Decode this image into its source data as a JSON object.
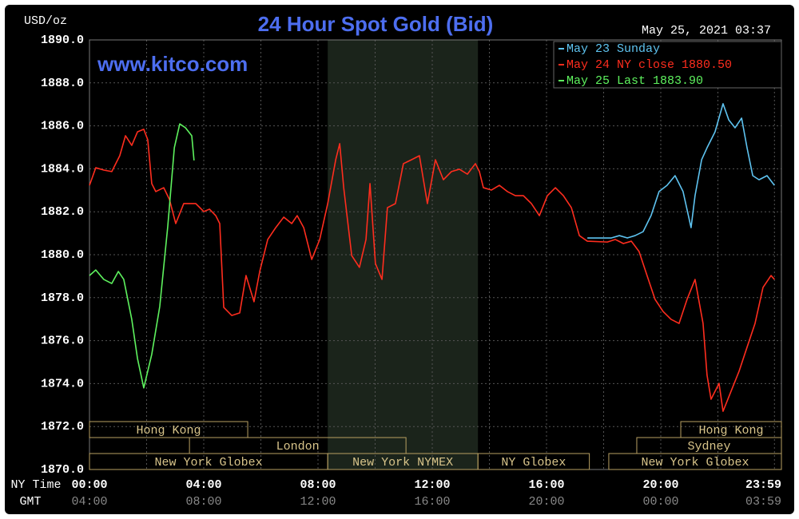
{
  "chart_data": {
    "type": "line",
    "title": "24 Hour Spot Gold (Bid)",
    "watermark": "www.kitco.com",
    "y_unit": "USD/oz",
    "timestamp": "May 25, 2021 03:37",
    "x_row_labels": [
      "NY Time",
      "GMT"
    ],
    "xlim": [
      0,
      24
    ],
    "ylim": [
      1870,
      1890
    ],
    "xticks": [
      {
        "value": 0,
        "label": "00:00"
      },
      {
        "value": 4,
        "label": "04:00"
      },
      {
        "value": 8,
        "label": "08:00"
      },
      {
        "value": 12,
        "label": "12:00"
      },
      {
        "value": 16,
        "label": "16:00"
      },
      {
        "value": 20,
        "label": "20:00"
      },
      {
        "value": 23.98,
        "label": "23:59"
      }
    ],
    "gmt_tick_labels": [
      "04:00",
      "08:00",
      "12:00",
      "16:00",
      "20:00",
      "00:00",
      "03:59"
    ],
    "xminor": [
      2,
      6,
      10,
      14,
      18,
      22
    ],
    "yticks": [
      {
        "value": 1870,
        "label": "1870.0"
      },
      {
        "value": 1872,
        "label": "1872.0"
      },
      {
        "value": 1874,
        "label": "1874.0"
      },
      {
        "value": 1876,
        "label": "1876.0"
      },
      {
        "value": 1878,
        "label": "1878.0"
      },
      {
        "value": 1880,
        "label": "1880.0"
      },
      {
        "value": 1882,
        "label": "1882.0"
      },
      {
        "value": 1884,
        "label": "1884.0"
      },
      {
        "value": 1886,
        "label": "1886.0"
      },
      {
        "value": 1888,
        "label": "1888.0"
      },
      {
        "value": 1890,
        "label": "1890.0"
      }
    ],
    "grid": true,
    "legend": "upper right",
    "series": [
      {
        "name": "May 23 Sunday",
        "color": "#5ec3f0",
        "x": [
          17.43,
          18.27,
          18.55,
          18.83,
          19.1,
          19.38,
          19.66,
          19.94,
          20.22,
          20.5,
          20.78,
          21.06,
          21.2,
          21.43,
          21.62,
          21.9,
          22.18,
          22.38,
          22.6,
          22.83,
          23.02,
          23.22,
          23.44,
          23.72,
          23.98
        ],
        "values": [
          1880.78,
          1880.78,
          1880.89,
          1880.78,
          1880.89,
          1881.07,
          1881.82,
          1882.94,
          1883.23,
          1883.68,
          1882.94,
          1881.26,
          1882.75,
          1884.42,
          1884.98,
          1885.72,
          1887.03,
          1886.28,
          1885.91,
          1886.36,
          1884.98,
          1883.68,
          1883.49,
          1883.68,
          1883.23
        ]
      },
      {
        "name": "May 24 NY close 1880.50",
        "color": "#ff2d1e",
        "x": [
          0.0,
          0.22,
          0.5,
          0.78,
          1.06,
          1.26,
          1.48,
          1.68,
          1.9,
          2.04,
          2.18,
          2.32,
          2.6,
          2.8,
          3.02,
          3.3,
          3.72,
          4.0,
          4.2,
          4.42,
          4.56,
          4.7,
          4.98,
          5.26,
          5.48,
          5.76,
          5.96,
          6.24,
          6.52,
          6.8,
          7.08,
          7.27,
          7.5,
          7.78,
          8.06,
          8.34,
          8.62,
          8.76,
          8.9,
          9.18,
          9.45,
          9.68,
          9.82,
          10.01,
          10.24,
          10.43,
          10.71,
          10.99,
          11.27,
          11.55,
          11.83,
          12.11,
          12.39,
          12.67,
          12.95,
          13.23,
          13.51,
          13.65,
          13.79,
          14.07,
          14.35,
          14.63,
          14.91,
          15.19,
          15.47,
          15.75,
          16.03,
          16.31,
          16.59,
          16.87,
          17.15,
          17.43,
          18.13,
          18.41,
          18.69,
          18.97,
          19.24,
          19.52,
          19.8,
          20.08,
          20.36,
          20.64,
          20.92,
          21.2,
          21.48,
          21.62,
          21.76,
          22.04,
          22.18,
          22.46,
          22.74,
          23.02,
          23.3,
          23.58,
          23.86,
          23.98
        ],
        "values": [
          1883.23,
          1884.05,
          1883.94,
          1883.87,
          1884.61,
          1885.54,
          1885.09,
          1885.72,
          1885.84,
          1885.35,
          1883.31,
          1882.94,
          1883.12,
          1882.57,
          1881.45,
          1882.38,
          1882.38,
          1882.01,
          1882.12,
          1881.82,
          1881.45,
          1877.55,
          1877.17,
          1877.29,
          1879.03,
          1877.81,
          1879.22,
          1880.71,
          1881.26,
          1881.75,
          1881.45,
          1881.82,
          1881.26,
          1879.78,
          1880.71,
          1882.38,
          1884.42,
          1885.17,
          1883.12,
          1879.96,
          1879.41,
          1880.71,
          1883.31,
          1879.59,
          1878.85,
          1882.19,
          1882.38,
          1884.24,
          1884.42,
          1884.61,
          1882.38,
          1884.42,
          1883.49,
          1883.87,
          1883.98,
          1883.75,
          1884.24,
          1883.87,
          1883.12,
          1883.01,
          1883.23,
          1882.94,
          1882.75,
          1882.75,
          1882.38,
          1881.82,
          1882.75,
          1883.12,
          1882.75,
          1882.19,
          1880.89,
          1880.63,
          1880.59,
          1880.71,
          1880.52,
          1880.63,
          1880.15,
          1879.03,
          1877.92,
          1877.36,
          1876.99,
          1876.8,
          1877.92,
          1878.85,
          1876.8,
          1874.39,
          1873.27,
          1874.01,
          1872.71,
          1873.64,
          1874.57,
          1875.69,
          1876.8,
          1878.48,
          1879.03,
          1878.85
        ]
      },
      {
        "name": "May 25 Last 1883.90",
        "color": "#5ef25e",
        "x": [
          0.0,
          0.22,
          0.5,
          0.78,
          1.01,
          1.2,
          1.48,
          1.68,
          1.9,
          2.18,
          2.46,
          2.74,
          2.97,
          3.16,
          3.36,
          3.58,
          3.66
        ],
        "values": [
          1879.03,
          1879.29,
          1878.85,
          1878.66,
          1879.22,
          1878.85,
          1876.99,
          1875.17,
          1873.8,
          1875.36,
          1877.59,
          1881.31,
          1884.98,
          1886.09,
          1885.91,
          1885.54,
          1884.39
        ]
      }
    ],
    "sessions": [
      {
        "label": "Hong Kong",
        "start": 0,
        "end": 5.54,
        "row": 0
      },
      {
        "label": "Hong Kong",
        "start": 20.7,
        "end": 24,
        "row": 0
      },
      {
        "label": "London",
        "start": 3.5,
        "end": 11.08,
        "row": 1
      },
      {
        "label": "Sydney",
        "start": 19.16,
        "end": 24,
        "row": 1
      },
      {
        "label": "New York Globex",
        "start": 0,
        "end": 8.34,
        "row": 2
      },
      {
        "label": "New York NYMEX",
        "start": 8.34,
        "end": 13.6,
        "row": 2,
        "shaded": true
      },
      {
        "label": "NY Globex",
        "start": 13.6,
        "end": 17.5,
        "row": 2
      },
      {
        "label": "New York Globex",
        "start": 18.18,
        "end": 24,
        "row": 2
      }
    ]
  }
}
